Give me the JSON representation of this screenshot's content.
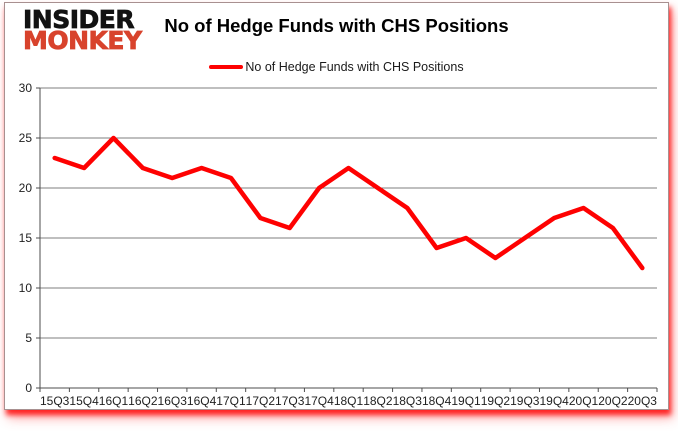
{
  "header": {
    "logo_line1": "INSIDER",
    "logo_line2": "MONKEY",
    "title": "No of Hedge Funds with CHS Positions"
  },
  "legend": {
    "series_label": "No of Hedge Funds with CHS Positions"
  },
  "colors": {
    "series_line": "#fe0101",
    "logo_primary": "#121212",
    "logo_accent": "#d8432c",
    "gridline": "#7f7f7f",
    "axis": "#4d4d4d",
    "tick_text": "#1f1f1f",
    "panel_shadow": "#ff0000"
  },
  "chart_data": {
    "type": "line",
    "title": "No of Hedge Funds with CHS Positions",
    "categories": [
      "15Q3",
      "15Q4",
      "16Q1",
      "16Q2",
      "16Q3",
      "16Q4",
      "17Q1",
      "17Q2",
      "17Q3",
      "17Q4",
      "18Q1",
      "18Q2",
      "18Q3",
      "18Q4",
      "19Q1",
      "19Q2",
      "19Q3",
      "19Q4",
      "20Q1",
      "20Q2",
      "20Q3"
    ],
    "series": [
      {
        "name": "No of Hedge Funds with CHS Positions",
        "values": [
          23,
          22,
          25,
          22,
          21,
          22,
          21,
          17,
          16,
          20,
          22,
          20,
          18,
          14,
          15,
          13,
          15,
          17,
          18,
          16,
          12
        ]
      }
    ],
    "xlabel": "",
    "ylabel": "",
    "ylim": [
      0,
      30
    ],
    "ytick_step": 5,
    "grid": true,
    "legend_position": "top-center",
    "line_width": 4.5
  }
}
